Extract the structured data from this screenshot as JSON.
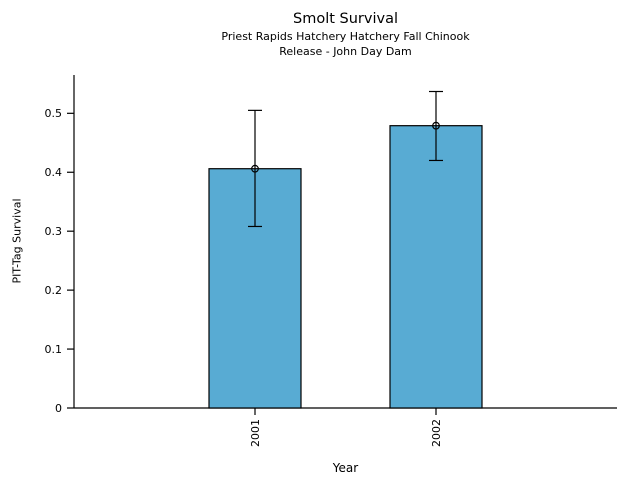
{
  "chart_data": {
    "type": "bar",
    "title": "Smolt Survival",
    "subtitle_lines": [
      "Priest Rapids Hatchery Hatchery Fall Chinook",
      "Release - John Day Dam"
    ],
    "xlabel": "Year",
    "ylabel": "PIT-Tag Survival",
    "categories": [
      "2001",
      "2002"
    ],
    "values": [
      0.406,
      0.479
    ],
    "error_low": [
      0.308,
      0.42
    ],
    "error_high": [
      0.505,
      0.537
    ],
    "ytick_values": [
      0,
      0.1,
      0.2,
      0.3,
      0.4,
      0.5
    ],
    "ytick_labels": [
      "0",
      "0.1",
      "0.2",
      "0.3",
      "0.4",
      "0.5"
    ],
    "ylim": [
      0,
      0.565
    ],
    "marker": "open-circle",
    "grid": false,
    "legend": "none",
    "bar_color": "#58ABD3",
    "bar_border_color": "#000000",
    "errorbar_color": "#000000",
    "axis_color": "#000000",
    "background_color": "#FFFFFF"
  }
}
